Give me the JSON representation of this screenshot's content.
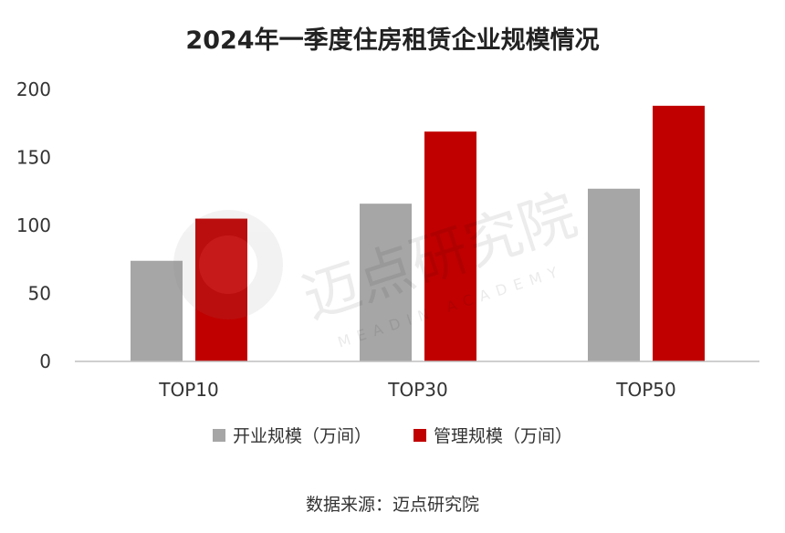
{
  "chart_data": {
    "type": "bar",
    "title": "2024年一季度住房租赁企业规模情况",
    "categories": [
      "TOP10",
      "TOP30",
      "TOP50"
    ],
    "series": [
      {
        "name": "开业规模（万间）",
        "values": [
          74,
          116,
          127
        ],
        "color": "#a6a6a6"
      },
      {
        "name": "管理规模（万间）",
        "values": [
          105,
          169,
          188
        ],
        "color": "#c00000"
      }
    ],
    "ylim": [
      0,
      200
    ],
    "yticks": [
      0,
      50,
      100,
      150,
      200
    ],
    "grid": false,
    "legend_position": "bottom"
  },
  "source": "数据来源：迈点研究院",
  "watermark": {
    "text": "迈点研究院",
    "subtext": "MEADIN ACADEMY"
  }
}
